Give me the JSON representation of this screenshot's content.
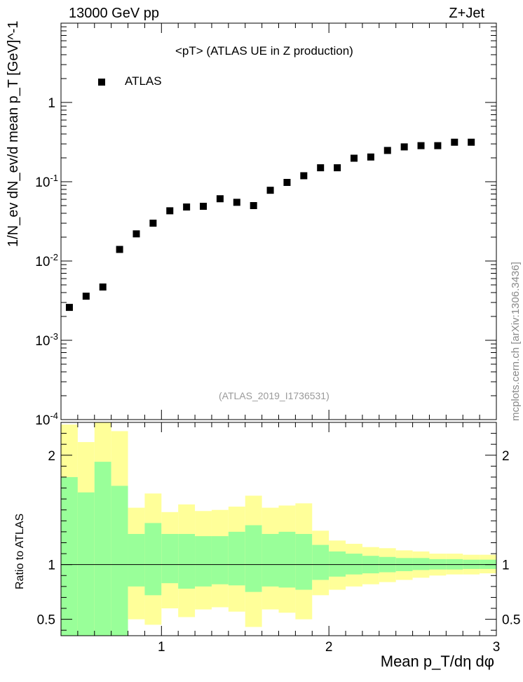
{
  "header": {
    "energy_label": "13000 GeV pp",
    "process_label": "Z+Jet",
    "title": "<pT> (ATLAS UE in Z production)",
    "analysis_tag": "(ATLAS_2019_I1736531)",
    "side_label": "mcplots.cern.ch [arXiv:1306.3436]",
    "legend_label": "ATLAS"
  },
  "colors": {
    "marker": "#000000",
    "band_inner": "#99ff99",
    "band_outer": "#ffff99",
    "frame": "#000000",
    "watermark": "#9a9a9a"
  },
  "chart_data": [
    {
      "type": "scatter",
      "name": "main",
      "ylabel": "1/N_ev dN_ev/d mean p_T [GeV]^-1",
      "yscale": "log",
      "xlim": [
        0.4,
        3.0
      ],
      "ylim": [
        0.0001,
        10
      ],
      "ytick_labels": [
        "10^-4",
        "10^-3",
        "10^-2",
        "10^-1",
        "1"
      ],
      "series": [
        {
          "name": "ATLAS",
          "x": [
            0.45,
            0.55,
            0.65,
            0.75,
            0.85,
            0.95,
            1.05,
            1.15,
            1.25,
            1.35,
            1.45,
            1.55,
            1.65,
            1.75,
            1.85,
            1.95,
            2.05,
            2.15,
            2.25,
            2.35,
            2.45,
            2.55,
            2.65,
            2.75,
            2.85
          ],
          "y": [
            0.0026,
            0.0036,
            0.0047,
            0.014,
            0.022,
            0.03,
            0.043,
            0.048,
            0.049,
            0.061,
            0.055,
            0.05,
            0.078,
            0.098,
            0.119,
            0.15,
            0.15,
            0.198,
            0.205,
            0.248,
            0.275,
            0.285,
            0.285,
            0.315,
            0.315
          ]
        }
      ]
    },
    {
      "type": "area",
      "name": "ratio",
      "xlabel": "Mean p_T/dη dφ",
      "ylabel": "Ratio to ATLAS",
      "xlim": [
        0.4,
        3.0
      ],
      "ylim": [
        0.35,
        2.3
      ],
      "xtick_labels": [
        "1",
        "2",
        "3"
      ],
      "ytick_labels": [
        "0.5",
        "1",
        "2"
      ],
      "bin_edges": [
        0.4,
        0.5,
        0.6,
        0.7,
        0.8,
        0.9,
        1.0,
        1.1,
        1.2,
        1.3,
        1.4,
        1.5,
        1.6,
        1.7,
        1.8,
        1.9,
        2.0,
        2.1,
        2.2,
        2.3,
        2.4,
        2.5,
        2.6,
        2.7,
        2.8,
        2.9,
        3.0
      ],
      "inner_band": {
        "low": [
          0.35,
          0.35,
          0.35,
          0.35,
          0.8,
          0.72,
          0.83,
          0.78,
          0.8,
          0.82,
          0.81,
          0.75,
          0.8,
          0.79,
          0.77,
          0.86,
          0.89,
          0.91,
          0.92,
          0.93,
          0.94,
          0.95,
          0.955,
          0.955,
          0.96,
          0.96
        ],
        "high": [
          1.8,
          1.66,
          1.94,
          1.72,
          1.28,
          1.38,
          1.28,
          1.28,
          1.26,
          1.26,
          1.3,
          1.36,
          1.28,
          1.3,
          1.28,
          1.18,
          1.12,
          1.1,
          1.08,
          1.07,
          1.06,
          1.06,
          1.05,
          1.05,
          1.045,
          1.045
        ]
      },
      "outer_band": {
        "low": [
          0.35,
          0.35,
          0.35,
          0.35,
          0.5,
          0.45,
          0.6,
          0.52,
          0.59,
          0.61,
          0.57,
          0.43,
          0.59,
          0.56,
          0.5,
          0.72,
          0.77,
          0.8,
          0.82,
          0.84,
          0.86,
          0.88,
          0.9,
          0.91,
          0.91,
          0.92
        ],
        "high": [
          2.28,
          2.12,
          2.3,
          2.22,
          1.52,
          1.65,
          1.48,
          1.55,
          1.49,
          1.5,
          1.53,
          1.63,
          1.52,
          1.54,
          1.56,
          1.31,
          1.22,
          1.19,
          1.16,
          1.15,
          1.13,
          1.12,
          1.1,
          1.1,
          1.09,
          1.09
        ]
      },
      "reference_line": 1.0
    }
  ]
}
